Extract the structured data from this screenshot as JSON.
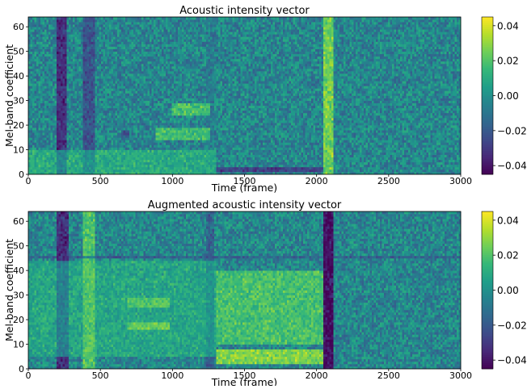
{
  "chart_data": [
    {
      "type": "heatmap",
      "title": "Acoustic intensity vector",
      "xlabel": "Time (frame)",
      "ylabel": "Mel-band coefficient",
      "xlim": [
        0,
        3000
      ],
      "ylim": [
        0,
        64
      ],
      "x_ticks": [
        0,
        500,
        1000,
        1500,
        2000,
        2500,
        3000
      ],
      "y_ticks": [
        0,
        10,
        20,
        30,
        40,
        50,
        60
      ],
      "colorbar": {
        "colormap": "viridis",
        "vmin": -0.045,
        "vmax": 0.045,
        "ticks": [
          -0.04,
          -0.02,
          0.0,
          0.02,
          0.04
        ],
        "tick_labels": [
          "−0.04",
          "−0.02",
          "0.00",
          "0.02",
          "0.04"
        ]
      },
      "features": [
        {
          "kind": "column",
          "x": [
            200,
            270
          ],
          "value": -0.03
        },
        {
          "kind": "column",
          "x": [
            380,
            460
          ],
          "value": -0.02
        },
        {
          "kind": "column",
          "x": [
            2040,
            2110
          ],
          "value": 0.028
        },
        {
          "kind": "column",
          "x": [
            1230,
            1290
          ],
          "value": -0.005
        },
        {
          "kind": "band",
          "x": [
            1000,
            1260
          ],
          "y": [
            24,
            29
          ],
          "value": 0.02
        },
        {
          "kind": "band",
          "x": [
            880,
            1260
          ],
          "y": [
            14,
            19
          ],
          "value": 0.018
        },
        {
          "kind": "band",
          "x": [
            650,
            700
          ],
          "y": [
            15,
            18
          ],
          "value": -0.02
        },
        {
          "kind": "band",
          "x": [
            1300,
            2050
          ],
          "y": [
            1,
            3
          ],
          "value": -0.025
        },
        {
          "kind": "band",
          "x": [
            0,
            1300
          ],
          "y": [
            0,
            10
          ],
          "value": 0.012
        }
      ]
    },
    {
      "type": "heatmap",
      "title": "Augmented acoustic intensity vector",
      "xlabel": "Time (frame)",
      "ylabel": "Mel-band coefficient",
      "xlim": [
        0,
        3000
      ],
      "ylim": [
        0,
        64
      ],
      "x_ticks": [
        0,
        500,
        1000,
        1500,
        2000,
        2500,
        3000
      ],
      "y_ticks": [
        0,
        10,
        20,
        30,
        40,
        50,
        60
      ],
      "colorbar": {
        "colormap": "viridis",
        "vmin": -0.045,
        "vmax": 0.045,
        "ticks": [
          -0.04,
          -0.02,
          0.0,
          0.02,
          0.04
        ],
        "tick_labels": [
          "−0.04",
          "−0.02",
          "0.00",
          "0.02",
          "0.04"
        ]
      },
      "features": [
        {
          "kind": "column",
          "x": [
            190,
            280
          ],
          "value": -0.03
        },
        {
          "kind": "column",
          "x": [
            380,
            460
          ],
          "value": 0.022
        },
        {
          "kind": "column",
          "x": [
            2040,
            2110
          ],
          "value": -0.04
        },
        {
          "kind": "column",
          "x": [
            1230,
            1290
          ],
          "value": -0.015
        },
        {
          "kind": "band",
          "x": [
            1300,
            2050
          ],
          "y": [
            2,
            8
          ],
          "value": 0.03
        },
        {
          "kind": "band",
          "x": [
            1300,
            2050
          ],
          "y": [
            10,
            40
          ],
          "value": 0.02
        },
        {
          "kind": "band",
          "x": [
            680,
            980
          ],
          "y": [
            16,
            19
          ],
          "value": 0.03
        },
        {
          "kind": "band",
          "x": [
            680,
            980
          ],
          "y": [
            25,
            29
          ],
          "value": 0.022
        },
        {
          "kind": "band",
          "x": [
            0,
            1300
          ],
          "y": [
            5,
            44
          ],
          "value": 0.01
        },
        {
          "kind": "band",
          "x": [
            0,
            3000
          ],
          "y": [
            45,
            46
          ],
          "value": -0.015
        }
      ]
    }
  ]
}
